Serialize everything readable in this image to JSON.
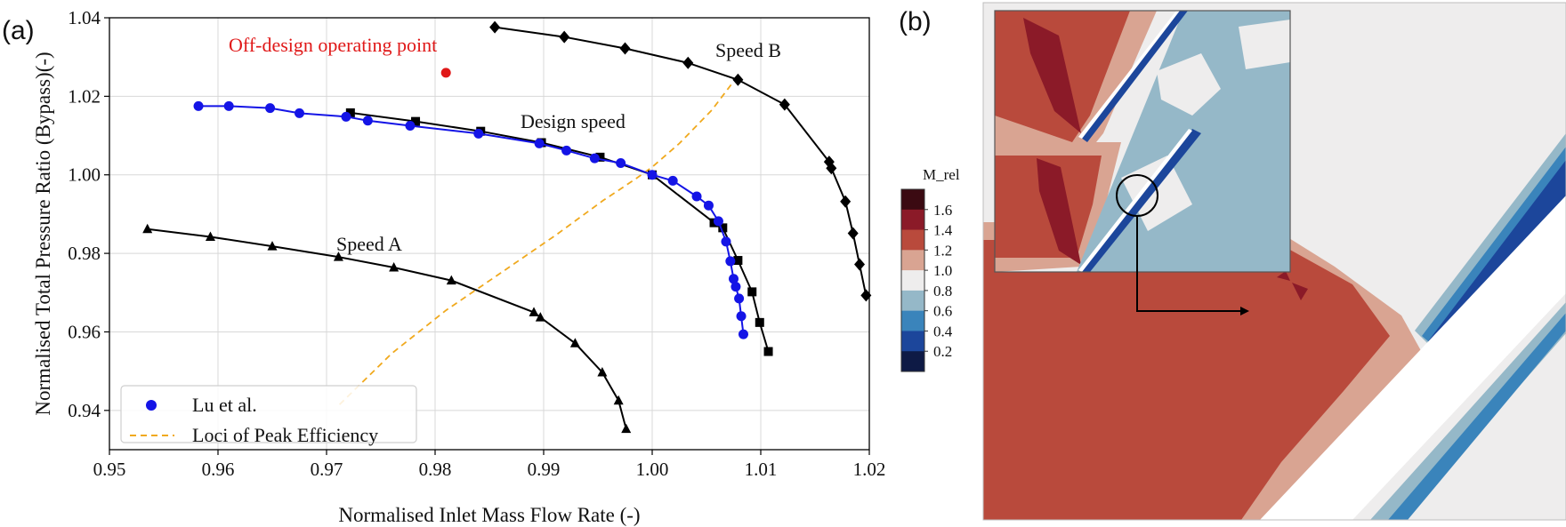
{
  "panels": {
    "a": "(a)",
    "b": "(b)"
  },
  "chart_data": {
    "type": "line",
    "xlabel": "Normalised Inlet Mass Flow Rate (-)",
    "ylabel": "Normalised Total Pressure Ratio (Bypass)(-)",
    "xlim": [
      0.95,
      1.02
    ],
    "ylim": [
      0.93,
      1.04
    ],
    "xticks": [
      "0.95",
      "0.96",
      "0.97",
      "0.98",
      "0.99",
      "1.00",
      "1.01",
      "1.02"
    ],
    "yticks": [
      "0.94",
      "0.96",
      "0.98",
      "1.00",
      "1.02",
      "1.04"
    ],
    "grid": true,
    "legend_position": "lower-left",
    "series": [
      {
        "name": "Lu et al.",
        "marker": "circle",
        "color": "#1414e6",
        "x": [
          0.9582,
          0.961,
          0.9648,
          0.9675,
          0.9718,
          0.9738,
          0.9777,
          0.984,
          0.9896,
          0.9921,
          0.9947,
          0.9971,
          1.0,
          1.0019,
          1.0041,
          1.0052,
          1.0061,
          1.0068,
          1.0072,
          1.0075,
          1.0077,
          1.008,
          1.0082,
          1.0084
        ],
        "y": [
          1.0175,
          1.0175,
          1.017,
          1.0157,
          1.0148,
          1.0138,
          1.0125,
          1.0105,
          1.008,
          1.0062,
          1.0042,
          1.003,
          1.0,
          0.9985,
          0.9945,
          0.9922,
          0.9882,
          0.983,
          0.978,
          0.9735,
          0.9715,
          0.9685,
          0.964,
          0.9594
        ]
      },
      {
        "name": "Design speed",
        "marker": "square",
        "color": "#000000",
        "x": [
          0.9722,
          0.9782,
          0.9842,
          0.9898,
          0.9952,
          1.0,
          1.0057,
          1.0065,
          1.0079,
          1.0092,
          1.0099,
          1.0107
        ],
        "y": [
          1.0158,
          1.0136,
          1.0111,
          1.0082,
          1.0045,
          1.0,
          0.9878,
          0.9865,
          0.9782,
          0.9702,
          0.9624,
          0.955
        ]
      },
      {
        "name": "Speed A",
        "marker": "triangle",
        "color": "#000000",
        "x": [
          0.9535,
          0.9593,
          0.965,
          0.9711,
          0.9762,
          0.9815,
          0.9891,
          0.9897,
          0.9929,
          0.9954,
          0.9969,
          0.9976
        ],
        "y": [
          0.9862,
          0.9842,
          0.9818,
          0.9791,
          0.9764,
          0.9731,
          0.965,
          0.9637,
          0.9571,
          0.9497,
          0.9425,
          0.9353
        ]
      },
      {
        "name": "Speed B",
        "marker": "diamond",
        "color": "#000000",
        "x": [
          0.9855,
          0.9919,
          0.9975,
          1.0033,
          1.0079,
          1.0122,
          1.0163,
          1.0165,
          1.0178,
          1.0185,
          1.0191,
          1.0197
        ],
        "y": [
          1.0376,
          1.0351,
          1.0322,
          1.0285,
          1.0242,
          1.0179,
          1.0033,
          1.0017,
          0.9932,
          0.9851,
          0.9772,
          0.9693
        ]
      },
      {
        "name": "Loci of Peak Efficiency",
        "line": "dashed",
        "color": "#f0a91e",
        "x": [
          0.9712,
          0.976,
          0.981,
          0.9862,
          0.9912,
          0.9955,
          0.9985,
          1.0,
          1.0025,
          1.0055,
          1.0075
        ],
        "y": [
          0.9415,
          0.9545,
          0.9655,
          0.9753,
          0.9848,
          0.9935,
          0.999,
          1.002,
          1.008,
          1.0165,
          1.0238
        ]
      }
    ],
    "annotations": [
      {
        "text": "Off-design operating point",
        "color": "#e01818",
        "x": 0.981,
        "y": 1.026
      },
      {
        "text": "Design speed"
      },
      {
        "text": "Speed A"
      },
      {
        "text": "Speed B"
      }
    ]
  },
  "colorbar": {
    "title": "M_rel",
    "labels": [
      "1.6",
      "1.4",
      "1.2",
      "1.0",
      "0.8",
      "0.6",
      "0.4",
      "0.2"
    ],
    "colors": [
      "#3b0a12",
      "#8b1a28",
      "#b94a3c",
      "#d9a492",
      "#eeeded",
      "#95b8c8",
      "#3a84bb",
      "#1c469b",
      "#0e1a45"
    ]
  },
  "contour_colors": {
    "highest": "#8b1a28",
    "high": "#b94a3c",
    "mid_high": "#d9a492",
    "neutral": "#eeeded",
    "low": "#95b8c8",
    "lower": "#3a84bb",
    "lowest": "#1c469b"
  }
}
